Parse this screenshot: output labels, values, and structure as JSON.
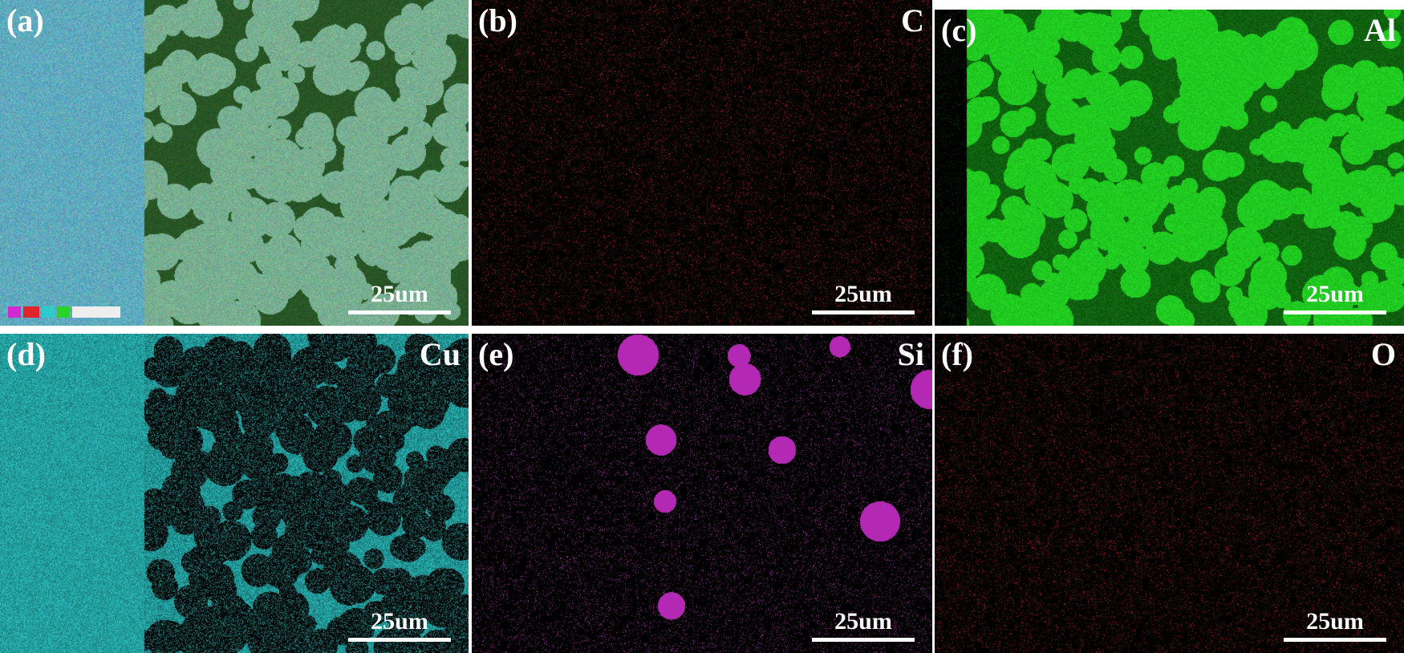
{
  "panels": [
    {
      "label": "(a)",
      "element": "",
      "scale": "25um",
      "kind": "overlay"
    },
    {
      "label": "(b)",
      "element": "C",
      "scale": "25um",
      "kind": "sparse",
      "color": "#c41a1a"
    },
    {
      "label": "(c)",
      "element": "Al",
      "scale": "25um",
      "kind": "grain",
      "color": "#22d522"
    },
    {
      "label": "(d)",
      "element": "Cu",
      "scale": "25um",
      "kind": "inverse",
      "color": "#2cc6c6"
    },
    {
      "label": "(e)",
      "element": "Si",
      "scale": "25um",
      "kind": "patch",
      "color": "#c72ec7"
    },
    {
      "label": "(f)",
      "element": "O",
      "scale": "25um",
      "kind": "sparse",
      "color": "#c41a1a"
    }
  ],
  "legend": {
    "colors": [
      "#d22ad2",
      "#e0242a",
      "#2ccccc",
      "#2ad22a"
    ]
  }
}
